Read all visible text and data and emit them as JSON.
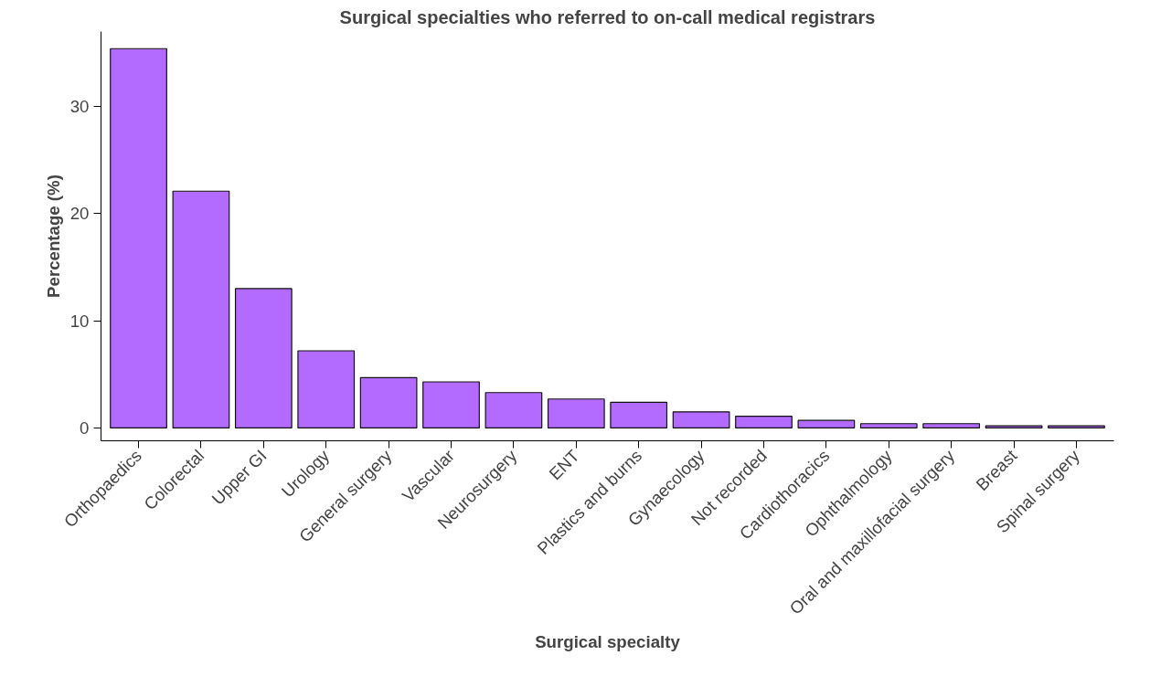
{
  "chart_data": {
    "type": "bar",
    "title": "Surgical specialties who referred to on-call medical registrars",
    "xlabel": "Surgical specialty",
    "ylabel": "Percentage (%)",
    "categories": [
      "Orthopaedics",
      "Colorectal",
      "Upper GI",
      "Urology",
      "General surgery",
      "Vascular",
      "Neurosurgery",
      "ENT",
      "Plastics and burns",
      "Gynaecology",
      "Not recorded",
      "Cardiothoracics",
      "Ophthalmology",
      "Oral and maxillofacial surgery",
      "Breast",
      "Spinal surgery"
    ],
    "values": [
      35.4,
      22.1,
      13.0,
      7.2,
      4.7,
      4.3,
      3.3,
      2.7,
      2.4,
      1.5,
      1.1,
      0.7,
      0.4,
      0.4,
      0.2,
      0.2
    ],
    "color": "#b36bff",
    "ylim": [
      -1.2,
      37
    ],
    "yticks": [
      0,
      10,
      20,
      30
    ],
    "grid": false
  }
}
